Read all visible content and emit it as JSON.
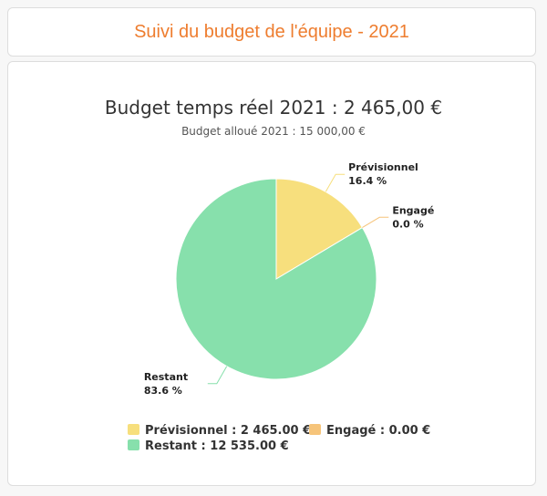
{
  "header": {
    "title": "Suivi du budget de l'équipe - 2021"
  },
  "colors": {
    "header_title": "#ee7d2f",
    "previsionnel": "#f7df7d",
    "engage": "#f6c47a",
    "restant": "#87e0ac"
  },
  "chart_data": {
    "type": "pie",
    "title": "Budget temps réel 2021 : 2 465,00 €",
    "subtitle": "Budget alloué 2021 : 15 000,00 €",
    "slices": [
      {
        "name": "Prévisionnel",
        "value": 2465.0,
        "percent_label": "16.4 %",
        "legend": "Prévisionnel : 2 465.00 €",
        "color": "#f7df7d"
      },
      {
        "name": "Engagé",
        "value": 0.0,
        "percent_label": "0.0 %",
        "legend": "Engagé : 0.00 €",
        "color": "#f6c47a"
      },
      {
        "name": "Restant",
        "value": 12535.0,
        "percent_label": "83.6 %",
        "legend": "Restant : 12 535.00 €",
        "color": "#87e0ac"
      }
    ],
    "legend_position": "bottom"
  }
}
